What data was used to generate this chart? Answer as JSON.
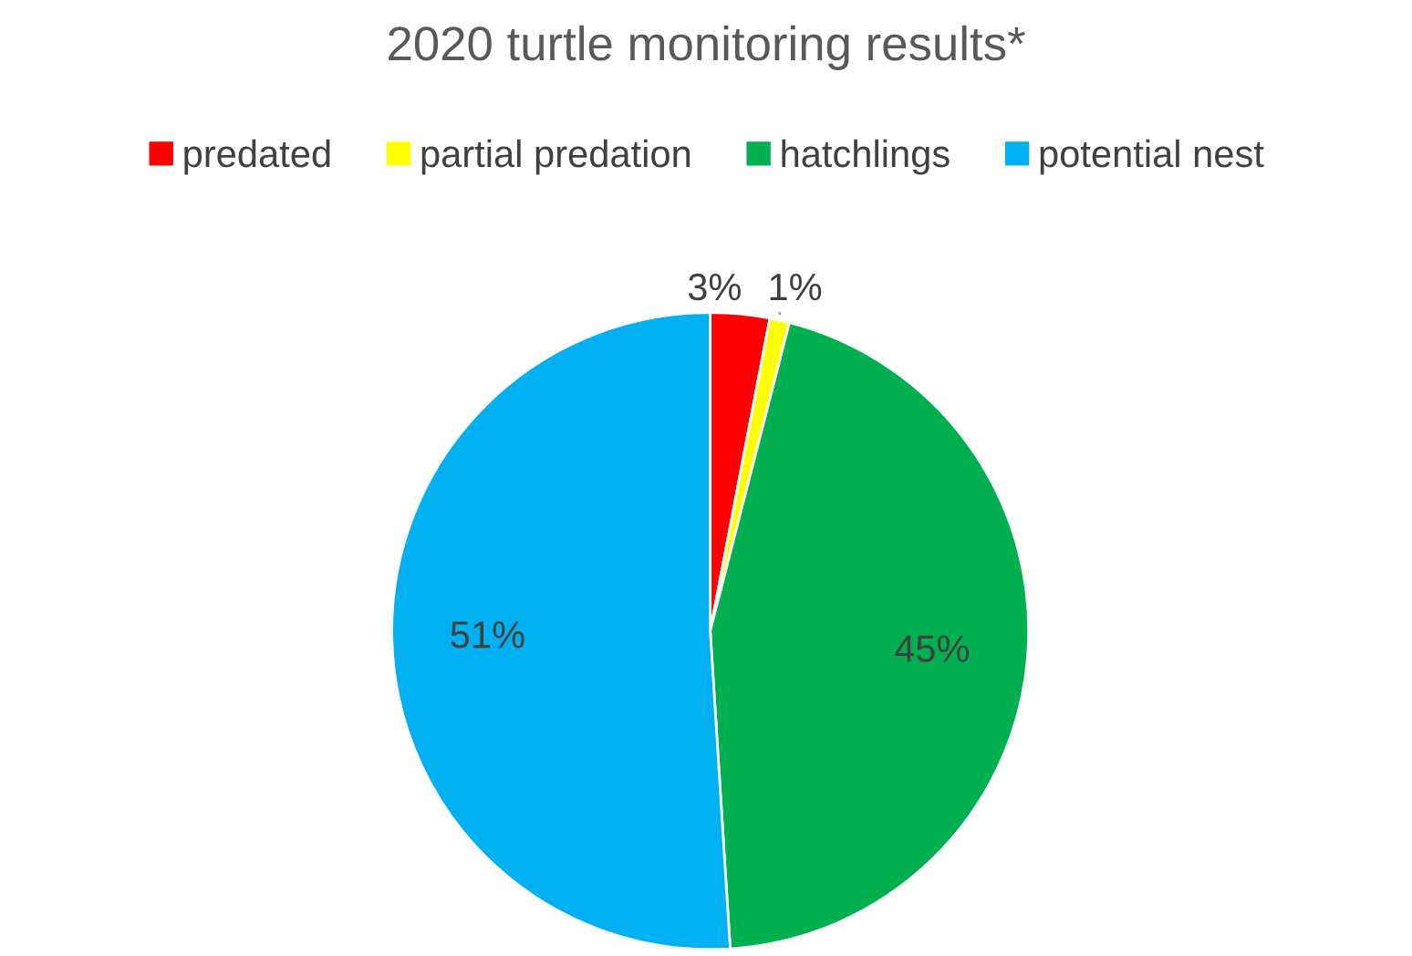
{
  "chart_data": {
    "type": "pie",
    "title": "2020 turtle monitoring results*",
    "categories": [
      "predated",
      "partial predation",
      "hatchlings",
      "potential nest"
    ],
    "values": [
      3,
      1,
      45,
      51
    ],
    "colors": [
      "#ff0000",
      "#ffff00",
      "#00b050",
      "#00b0f0"
    ],
    "value_labels": [
      "3%",
      "1%",
      "45%",
      "51%"
    ],
    "legend": "top"
  }
}
